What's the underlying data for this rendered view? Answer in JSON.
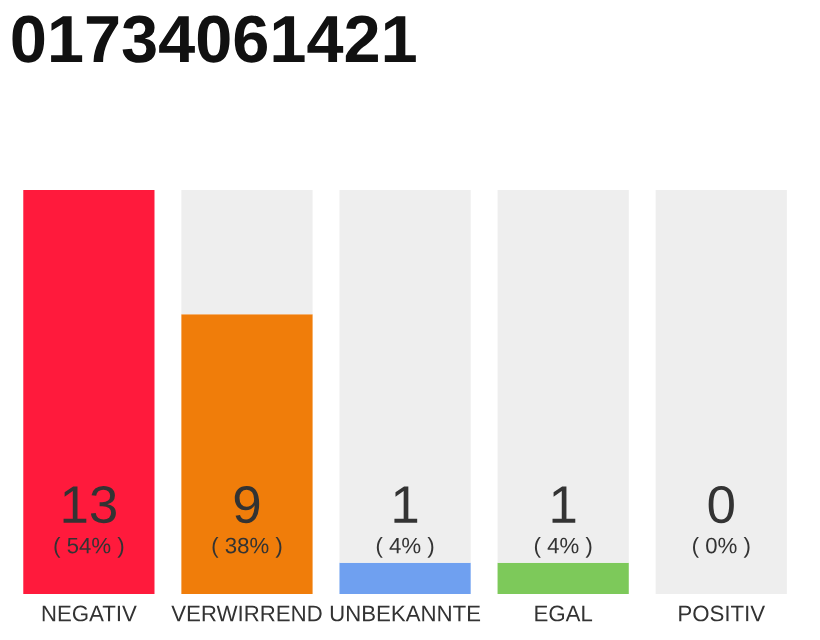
{
  "chart_data": {
    "type": "bar",
    "title": "01734061421",
    "stacked": true,
    "categories": [
      "NEGATIV",
      "VERWIRREND",
      "UNBEKANNTE",
      "EGAL",
      "POSITIV"
    ],
    "series": [
      {
        "colors": [
          "#ff1a3c",
          "#f07d0a",
          "#6fa0f0",
          "#7dc95a",
          "#bbbbbb"
        ],
        "values": [
          13,
          9,
          1,
          1,
          0
        ],
        "value_labels": [
          "13",
          "9",
          "1",
          "1",
          null
        ]
      },
      {
        "color": "#eeeeee",
        "values": [
          0,
          4,
          12,
          12,
          13
        ]
      }
    ],
    "annotations": [
      "( 54% )",
      "( 38% )",
      "( 4% )",
      "( 4% )",
      "( 0% )",
      "0"
    ],
    "grid": false,
    "legend": false
  }
}
